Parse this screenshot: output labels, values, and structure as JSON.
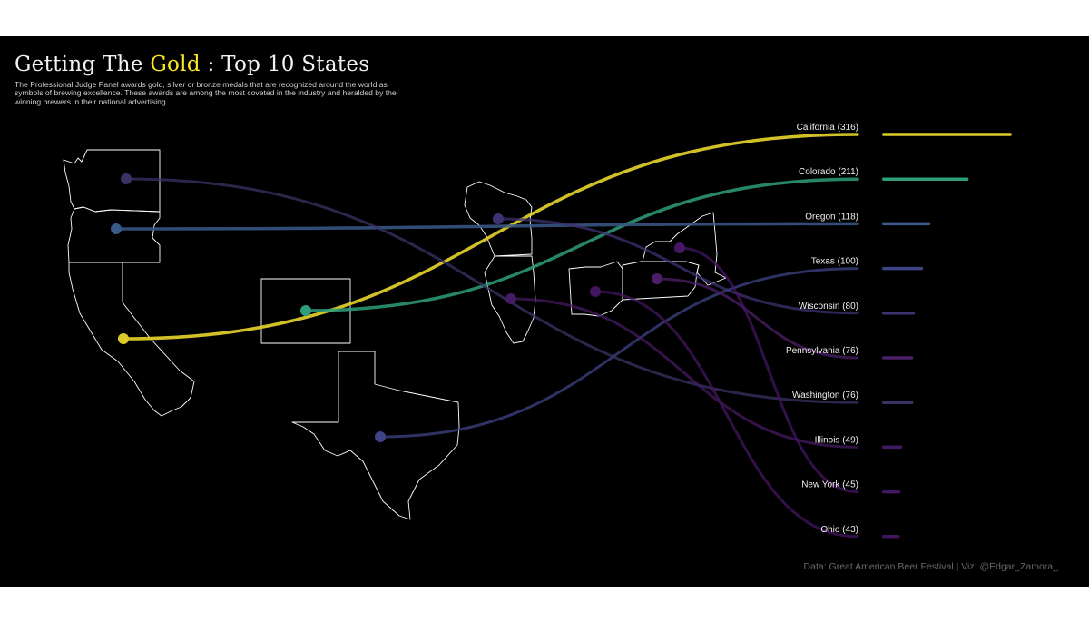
{
  "title": {
    "before": "Getting The ",
    "highlight": "Gold",
    "after": " : Top 10 States"
  },
  "subtitle": "The Professional Judge Panel awards gold, silver or bronze medals that are recognized around the world as symbols of brewing excellence. These awards are among the most coveted in the industry and heralded by the winning brewers in their national advertising.",
  "caption": "Data: Great American Beer Festival | Viz: @Edgar_Zamora_",
  "colors": {
    "background": "#000000",
    "title_highlight": "#fde725",
    "state_outline": "#ffffff"
  },
  "chart_data": {
    "type": "bar",
    "categories": [
      "California",
      "Colorado",
      "Oregon",
      "Texas",
      "Wisconsin",
      "Pennsylvania",
      "Washington",
      "Illinois",
      "New York",
      "Ohio"
    ],
    "values": [
      316,
      211,
      118,
      100,
      80,
      76,
      76,
      49,
      45,
      43
    ],
    "labels": [
      "California (316)",
      "Colorado (211)",
      "Oregon (118)",
      "Texas (100)",
      "Wisconsin (80)",
      "Pennsylvania (76)",
      "Washington (76)",
      "Illinois (49)",
      "New York (45)",
      "Ohio (43)"
    ],
    "colors": [
      "#dcca2a",
      "#2e9e7c",
      "#3a5a8a",
      "#3e4486",
      "#3e3272",
      "#4c2068",
      "#3a3466",
      "#441a60",
      "#441664",
      "#44155f"
    ],
    "orientation": "horizontal",
    "connectors": "sigmoid curves from each state's map location to its bar",
    "grid": false,
    "legend": "none"
  }
}
